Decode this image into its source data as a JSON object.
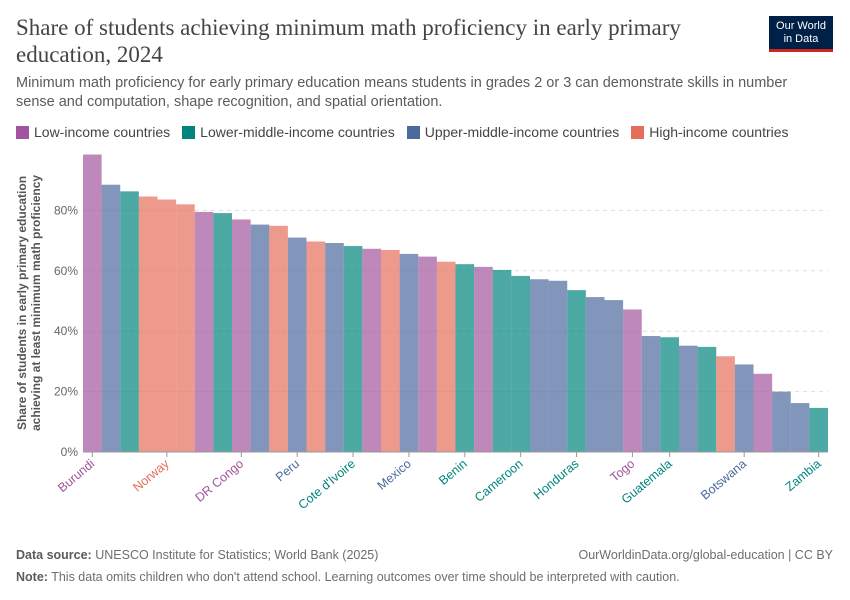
{
  "header": {
    "title": "Share of students achieving minimum math proficiency in early primary education, 2024",
    "subtitle": "Minimum math proficiency for early primary education means students in grades 2 or 3 can demonstrate skills in number sense and computation, shape recognition, and spatial orientation.",
    "logo_line1": "Our World",
    "logo_line2": "in Data"
  },
  "colors": {
    "Low-income countries": "#a2559c",
    "Lower-middle-income countries": "#00847e",
    "Upper-middle-income countries": "#4c6a9c",
    "High-income countries": "#e56e5a"
  },
  "legend": [
    {
      "label": "Low-income countries"
    },
    {
      "label": "Lower-middle-income countries"
    },
    {
      "label": "Upper-middle-income countries"
    },
    {
      "label": "High-income countries"
    }
  ],
  "chart_data": {
    "type": "bar",
    "ylabel": "Share of students in early primary education achieving at least minimum math proficiency",
    "ylim": [
      0,
      100
    ],
    "yticks": [
      0,
      20,
      40,
      60,
      80
    ],
    "ytick_labels": [
      "0%",
      "20%",
      "40%",
      "60%",
      "80%"
    ],
    "grid": true,
    "legend_position": "top",
    "bars": [
      {
        "label": "Burundi",
        "group": "Low-income countries",
        "value": 98.5
      },
      {
        "label": "",
        "group": "Upper-middle-income countries",
        "value": 88.5
      },
      {
        "label": "",
        "group": "Lower-middle-income countries",
        "value": 86.3
      },
      {
        "label": "",
        "group": "High-income countries",
        "value": 84.6
      },
      {
        "label": "Norway",
        "group": "High-income countries",
        "value": 83.6
      },
      {
        "label": "",
        "group": "High-income countries",
        "value": 82
      },
      {
        "label": "",
        "group": "Low-income countries",
        "value": 79.5
      },
      {
        "label": "",
        "group": "Lower-middle-income countries",
        "value": 79.1
      },
      {
        "label": "DR Congo",
        "group": "Low-income countries",
        "value": 77
      },
      {
        "label": "",
        "group": "Upper-middle-income countries",
        "value": 75.3
      },
      {
        "label": "",
        "group": "High-income countries",
        "value": 74.9
      },
      {
        "label": "Peru",
        "group": "Upper-middle-income countries",
        "value": 71
      },
      {
        "label": "",
        "group": "High-income countries",
        "value": 69.7
      },
      {
        "label": "",
        "group": "Upper-middle-income countries",
        "value": 69.2
      },
      {
        "label": "Cote d'Ivoire",
        "group": "Lower-middle-income countries",
        "value": 68.2
      },
      {
        "label": "",
        "group": "Low-income countries",
        "value": 67.3
      },
      {
        "label": "",
        "group": "High-income countries",
        "value": 66.9
      },
      {
        "label": "Mexico",
        "group": "Upper-middle-income countries",
        "value": 65.6
      },
      {
        "label": "",
        "group": "Low-income countries",
        "value": 64.7
      },
      {
        "label": "",
        "group": "High-income countries",
        "value": 63
      },
      {
        "label": "Benin",
        "group": "Lower-middle-income countries",
        "value": 62.2
      },
      {
        "label": "",
        "group": "Low-income countries",
        "value": 61.3
      },
      {
        "label": "",
        "group": "Lower-middle-income countries",
        "value": 60.3
      },
      {
        "label": "Cameroon",
        "group": "Lower-middle-income countries",
        "value": 58.3
      },
      {
        "label": "",
        "group": "Upper-middle-income countries",
        "value": 57.2
      },
      {
        "label": "",
        "group": "Upper-middle-income countries",
        "value": 56.7
      },
      {
        "label": "Honduras",
        "group": "Lower-middle-income countries",
        "value": 53.6
      },
      {
        "label": "",
        "group": "Upper-middle-income countries",
        "value": 51.3
      },
      {
        "label": "",
        "group": "Upper-middle-income countries",
        "value": 50.3
      },
      {
        "label": "Togo",
        "group": "Low-income countries",
        "value": 47.2
      },
      {
        "label": "",
        "group": "Upper-middle-income countries",
        "value": 38.4
      },
      {
        "label": "Guatemala",
        "group": "Lower-middle-income countries",
        "value": 38
      },
      {
        "label": "",
        "group": "Upper-middle-income countries",
        "value": 35.2
      },
      {
        "label": "",
        "group": "Lower-middle-income countries",
        "value": 34.8
      },
      {
        "label": "",
        "group": "High-income countries",
        "value": 31.7
      },
      {
        "label": "Botswana",
        "group": "Upper-middle-income countries",
        "value": 29
      },
      {
        "label": "",
        "group": "Low-income countries",
        "value": 25.9
      },
      {
        "label": "",
        "group": "Upper-middle-income countries",
        "value": 20
      },
      {
        "label": "",
        "group": "Upper-middle-income countries",
        "value": 16.2
      },
      {
        "label": "Zambia",
        "group": "Lower-middle-income countries",
        "value": 14.6
      }
    ]
  },
  "footer": {
    "source_label": "Data source:",
    "source_text": "UNESCO Institute for Statistics; World Bank (2025)",
    "url_text": "OurWorldinData.org/global-education | CC BY",
    "note_label": "Note:",
    "note_text": "This data omits children who don't attend school. Learning outcomes over time should be interpreted with caution."
  }
}
